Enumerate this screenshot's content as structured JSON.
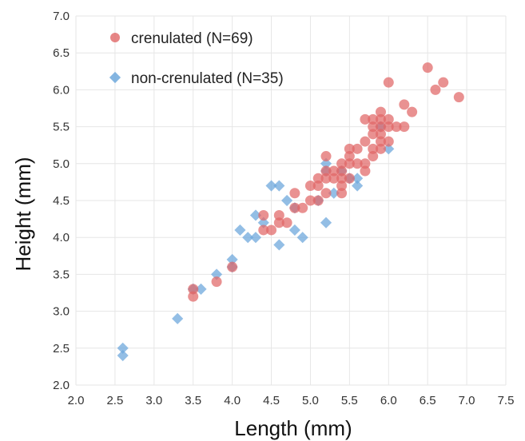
{
  "chart_data": {
    "type": "scatter",
    "title": "",
    "xlabel": "Length (mm)",
    "ylabel": "Height (mm)",
    "xlim": [
      2.0,
      7.5
    ],
    "ylim": [
      2.0,
      7.0
    ],
    "x_ticks": [
      "2.0",
      "2.5",
      "3.0",
      "3.5",
      "4.0",
      "4.5",
      "5.0",
      "5.5",
      "6.0",
      "6.5",
      "7.0",
      "7.5"
    ],
    "y_ticks": [
      "2.0",
      "2.5",
      "3.0",
      "3.5",
      "4.0",
      "4.5",
      "5.0",
      "5.5",
      "6.0",
      "6.5",
      "7.0"
    ],
    "grid": true,
    "legend_position": "top-left",
    "series": [
      {
        "name": "crenulated (N=69)",
        "marker": "circle",
        "color": "#e06666",
        "points": [
          [
            3.5,
            3.3
          ],
          [
            3.5,
            3.2
          ],
          [
            3.8,
            3.4
          ],
          [
            4.0,
            3.6
          ],
          [
            4.4,
            4.3
          ],
          [
            4.4,
            4.1
          ],
          [
            4.5,
            4.1
          ],
          [
            4.6,
            4.3
          ],
          [
            4.6,
            4.2
          ],
          [
            4.7,
            4.2
          ],
          [
            4.8,
            4.6
          ],
          [
            4.8,
            4.4
          ],
          [
            4.9,
            4.4
          ],
          [
            5.0,
            4.7
          ],
          [
            5.0,
            4.5
          ],
          [
            5.1,
            4.8
          ],
          [
            5.1,
            4.7
          ],
          [
            5.1,
            4.5
          ],
          [
            5.2,
            5.1
          ],
          [
            5.2,
            4.9
          ],
          [
            5.2,
            4.8
          ],
          [
            5.2,
            4.6
          ],
          [
            5.3,
            4.9
          ],
          [
            5.3,
            4.8
          ],
          [
            5.4,
            5.0
          ],
          [
            5.4,
            4.9
          ],
          [
            5.4,
            4.8
          ],
          [
            5.4,
            4.7
          ],
          [
            5.4,
            4.6
          ],
          [
            5.5,
            5.2
          ],
          [
            5.5,
            5.1
          ],
          [
            5.5,
            5.0
          ],
          [
            5.5,
            4.8
          ],
          [
            5.6,
            5.2
          ],
          [
            5.6,
            5.0
          ],
          [
            5.7,
            5.6
          ],
          [
            5.7,
            5.3
          ],
          [
            5.7,
            5.0
          ],
          [
            5.7,
            4.9
          ],
          [
            5.8,
            5.6
          ],
          [
            5.8,
            5.5
          ],
          [
            5.8,
            5.4
          ],
          [
            5.8,
            5.2
          ],
          [
            5.8,
            5.1
          ],
          [
            5.9,
            5.7
          ],
          [
            5.9,
            5.6
          ],
          [
            5.9,
            5.5
          ],
          [
            5.9,
            5.4
          ],
          [
            5.9,
            5.3
          ],
          [
            5.9,
            5.2
          ],
          [
            6.0,
            6.1
          ],
          [
            6.0,
            5.6
          ],
          [
            6.0,
            5.5
          ],
          [
            6.0,
            5.3
          ],
          [
            6.1,
            5.5
          ],
          [
            6.2,
            5.8
          ],
          [
            6.2,
            5.5
          ],
          [
            6.3,
            5.7
          ],
          [
            6.5,
            6.3
          ],
          [
            6.6,
            6.0
          ],
          [
            6.7,
            6.1
          ],
          [
            6.9,
            5.9
          ]
        ]
      },
      {
        "name": "non-crenulated (N=35)",
        "marker": "diamond",
        "color": "#6fa8dc",
        "points": [
          [
            2.6,
            2.5
          ],
          [
            2.6,
            2.4
          ],
          [
            3.3,
            2.9
          ],
          [
            3.5,
            3.3
          ],
          [
            3.6,
            3.3
          ],
          [
            3.8,
            3.5
          ],
          [
            4.0,
            3.7
          ],
          [
            4.0,
            3.6
          ],
          [
            4.1,
            4.1
          ],
          [
            4.2,
            4.0
          ],
          [
            4.3,
            4.3
          ],
          [
            4.3,
            4.0
          ],
          [
            4.4,
            4.2
          ],
          [
            4.5,
            4.7
          ],
          [
            4.6,
            4.7
          ],
          [
            4.6,
            3.9
          ],
          [
            4.7,
            4.5
          ],
          [
            4.8,
            4.4
          ],
          [
            4.8,
            4.1
          ],
          [
            4.9,
            4.0
          ],
          [
            5.1,
            4.5
          ],
          [
            5.2,
            5.0
          ],
          [
            5.2,
            4.9
          ],
          [
            5.2,
            4.2
          ],
          [
            5.3,
            4.6
          ],
          [
            5.4,
            4.9
          ],
          [
            5.5,
            4.8
          ],
          [
            5.6,
            4.8
          ],
          [
            5.6,
            4.7
          ],
          [
            5.9,
            5.5
          ],
          [
            6.0,
            5.2
          ]
        ]
      }
    ]
  }
}
